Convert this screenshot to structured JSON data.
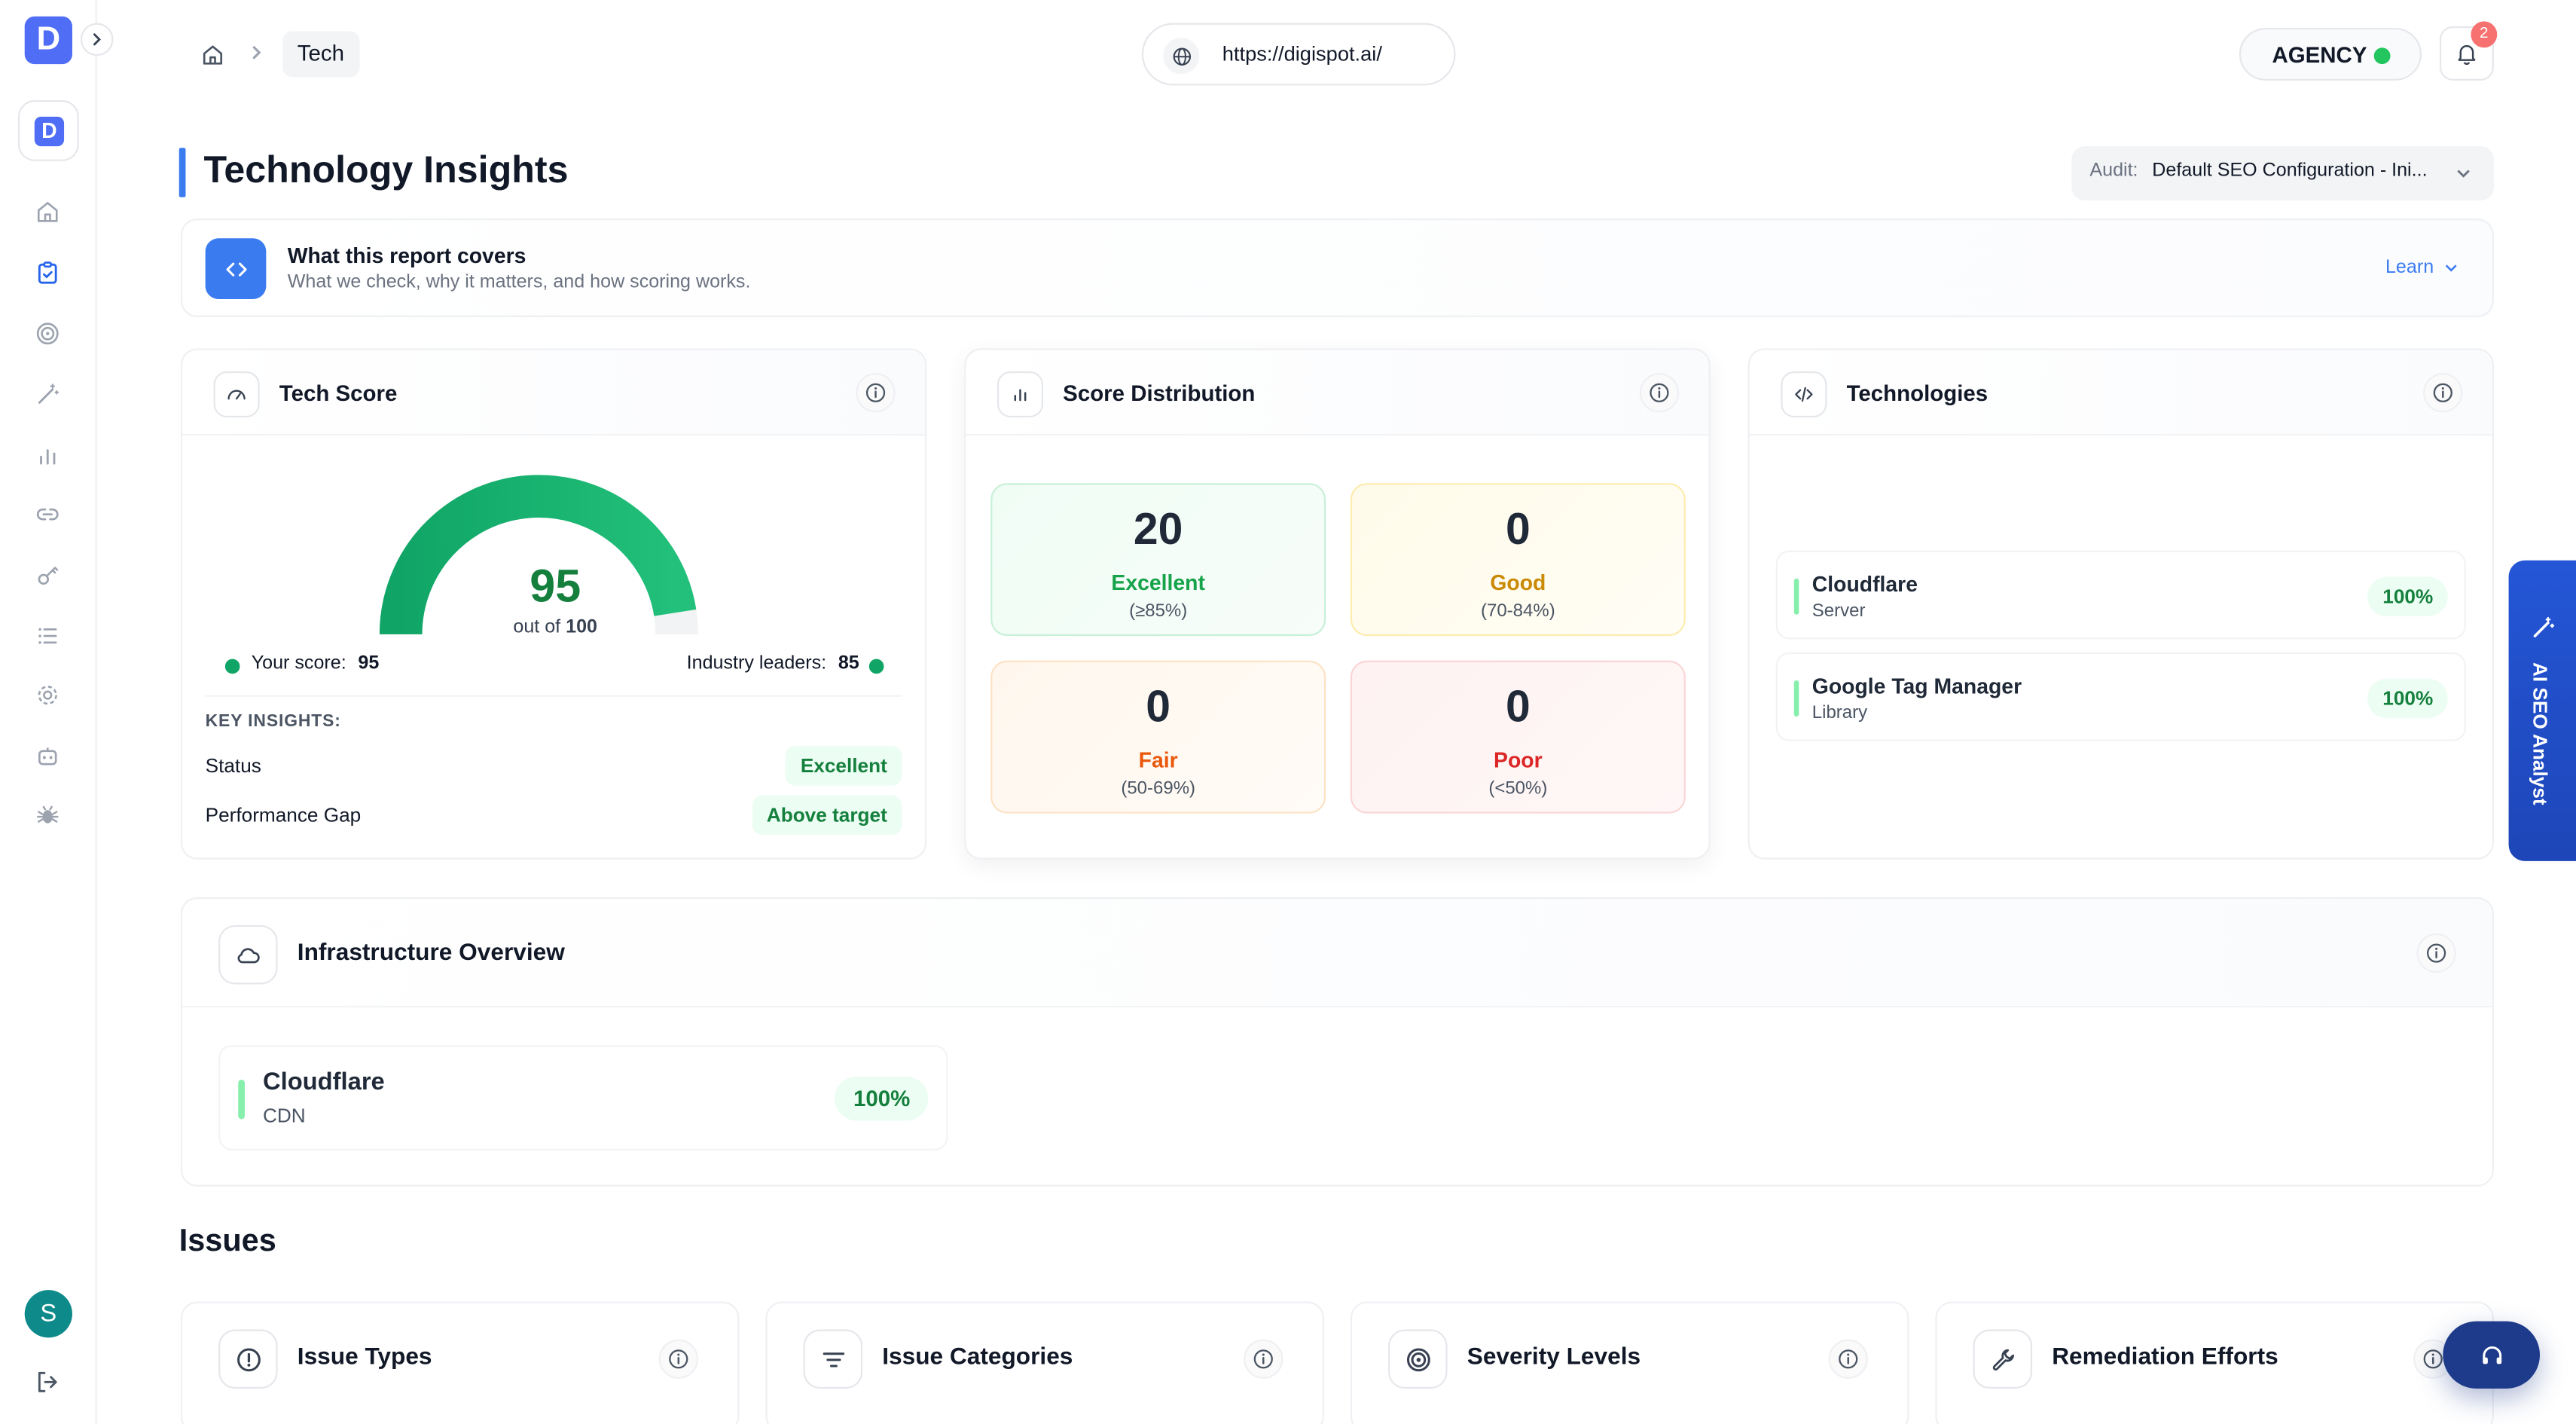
{
  "app": {
    "logo_letter": "D",
    "workspace_letter": "D"
  },
  "breadcrumb": {
    "current": "Tech"
  },
  "url_bar": {
    "value": "https://digispot.ai/"
  },
  "plan": {
    "label": "AGENCY",
    "status_color": "#22c55e"
  },
  "notifications": {
    "count": "2"
  },
  "page": {
    "title": "Technology Insights"
  },
  "audit_selector": {
    "label": "Audit:",
    "value": "Default SEO Configuration - Ini..."
  },
  "report_info": {
    "title": "What this report covers",
    "subtitle": "What we check, why it matters, and how scoring works.",
    "learn_label": "Learn"
  },
  "tech_score": {
    "title": "Tech Score",
    "score": "95",
    "out_of_prefix": "out of",
    "out_of_value": "100",
    "gauge_fraction": 0.95,
    "your_score_label": "Your score:",
    "your_score_value": "95",
    "leaders_label": "Industry leaders:",
    "leaders_value": "85",
    "insights_heading": "KEY INSIGHTS:",
    "insights": [
      {
        "label": "Status",
        "value": "Excellent"
      },
      {
        "label": "Performance Gap",
        "value": "Above target"
      }
    ]
  },
  "score_distribution": {
    "title": "Score Distribution",
    "buckets": [
      {
        "count": "20",
        "label": "Excellent",
        "range": "(≥85%)",
        "color": "#16a34a"
      },
      {
        "count": "0",
        "label": "Good",
        "range": "(70-84%)",
        "color": "#ca8a04"
      },
      {
        "count": "0",
        "label": "Fair",
        "range": "(50-69%)",
        "color": "#ea580c"
      },
      {
        "count": "0",
        "label": "Poor",
        "range": "(<50%)",
        "color": "#dc2626"
      }
    ]
  },
  "technologies": {
    "title": "Technologies",
    "items": [
      {
        "name": "Cloudflare",
        "category": "Server",
        "percent": "100%"
      },
      {
        "name": "Google Tag Manager",
        "category": "Library",
        "percent": "100%"
      }
    ]
  },
  "infrastructure": {
    "title": "Infrastructure Overview",
    "items": [
      {
        "name": "Cloudflare",
        "category": "CDN",
        "percent": "100%"
      }
    ]
  },
  "issues": {
    "heading": "Issues",
    "cards": [
      {
        "title": "Issue Types",
        "icon": "alert-circle-icon"
      },
      {
        "title": "Issue Categories",
        "icon": "filter-icon"
      },
      {
        "title": "Severity Levels",
        "icon": "target-icon"
      },
      {
        "title": "Remediation Efforts",
        "icon": "wrench-icon"
      }
    ]
  },
  "ai_panel": {
    "label": "AI SEO Analyst"
  },
  "user": {
    "initial": "S"
  }
}
